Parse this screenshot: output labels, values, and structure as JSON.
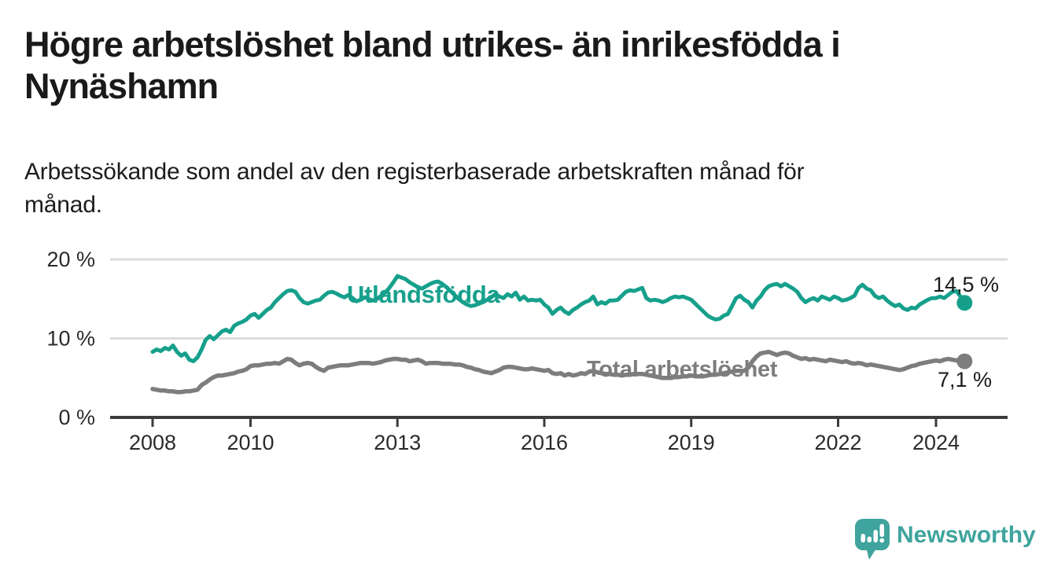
{
  "header": {
    "title": "Högre arbetslöshet bland utrikes- än inrikesfödda i Nynäshamn",
    "title_lines": [
      "Högre arbetslöshet bland utrikes- än inrikesfödda i",
      "Nynäshamn"
    ],
    "subtitle": "Arbetssökande som andel av den registerbaserade arbetskraften månad för månad.",
    "subtitle_lines": [
      "Arbetssökande som andel av den registerbaserade arbetskraften månad för",
      "månad."
    ]
  },
  "chart_data": {
    "type": "line",
    "title": "Högre arbetslöshet bland utrikes- än inrikesfödda i Nynäshamn",
    "x_unit": "month",
    "x_start": "2008-01",
    "x_end": "2024-08",
    "grid": "horizontal-gridlines",
    "legend": "inline-series-labels",
    "ylim": [
      0,
      21
    ],
    "y_ticks": [
      {
        "label": "20 %",
        "value": 20
      },
      {
        "label": "10 %",
        "value": 10
      },
      {
        "label": "0 %",
        "value": 0
      }
    ],
    "x_ticks": [
      {
        "label": "2008",
        "year": 2008
      },
      {
        "label": "2010",
        "year": 2010
      },
      {
        "label": "2013",
        "year": 2013
      },
      {
        "label": "2016",
        "year": 2016
      },
      {
        "label": "2019",
        "year": 2019
      },
      {
        "label": "2022",
        "year": 2022
      },
      {
        "label": "2024",
        "year": 2024
      }
    ],
    "series": [
      {
        "name": "Utlandsfödda",
        "color": "#16a08c",
        "end_label": "14,5 %",
        "end_value": 14.5,
        "values": [
          8.3,
          8.6,
          8.4,
          8.8,
          8.6,
          9.1,
          8.3,
          7.8,
          8.1,
          7.3,
          7.1,
          7.6,
          8.6,
          9.8,
          10.3,
          9.9,
          10.4,
          10.9,
          11.1,
          10.8,
          11.6,
          11.9,
          12.1,
          12.4,
          12.9,
          13.1,
          12.6,
          13.1,
          13.6,
          13.9,
          14.6,
          15.1,
          15.6,
          16.0,
          16.1,
          15.9,
          15.1,
          14.6,
          14.4,
          14.6,
          14.8,
          14.9,
          15.4,
          15.8,
          15.9,
          15.7,
          15.4,
          15.2,
          15.5,
          15.1,
          14.7,
          14.9,
          15.2,
          15.0,
          14.8,
          15.0,
          15.4,
          15.8,
          16.4,
          17.1,
          17.9,
          17.7,
          17.5,
          17.1,
          16.8,
          16.5,
          16.3,
          16.6,
          16.9,
          17.1,
          17.2,
          16.9,
          16.5,
          16.0,
          15.5,
          15.0,
          14.6,
          14.3,
          14.1,
          14.2,
          14.4,
          14.6,
          14.9,
          15.2,
          15.6,
          15.3,
          15.1,
          15.6,
          15.3,
          15.8,
          14.9,
          15.3,
          14.8,
          14.9,
          14.8,
          14.9,
          14.3,
          13.9,
          13.1,
          13.6,
          13.9,
          13.4,
          13.1,
          13.6,
          13.9,
          14.3,
          14.6,
          14.8,
          15.3,
          14.3,
          14.6,
          14.4,
          14.8,
          14.8,
          14.9,
          15.4,
          15.9,
          16.1,
          16.0,
          16.2,
          16.4,
          15.1,
          14.8,
          14.9,
          14.8,
          14.6,
          14.8,
          15.1,
          15.3,
          15.2,
          15.3,
          15.1,
          14.9,
          14.4,
          13.9,
          13.4,
          12.9,
          12.6,
          12.4,
          12.5,
          12.9,
          13.1,
          14.1,
          15.1,
          15.4,
          14.9,
          14.6,
          13.9,
          14.8,
          15.3,
          16.1,
          16.6,
          16.8,
          16.9,
          16.6,
          16.9,
          16.6,
          16.3,
          15.9,
          15.1,
          14.6,
          14.9,
          15.1,
          14.8,
          15.3,
          15.1,
          14.9,
          15.3,
          15.1,
          14.8,
          14.9,
          15.1,
          15.4,
          16.4,
          16.8,
          16.3,
          16.1,
          15.4,
          15.1,
          15.3,
          14.8,
          14.4,
          14.1,
          14.3,
          13.8,
          13.6,
          13.9,
          13.8,
          14.3,
          14.6,
          14.9,
          15.1,
          15.1,
          15.3,
          15.1,
          15.5,
          15.9,
          16.0,
          15.3,
          14.5
        ]
      },
      {
        "name": "Total arbetslöshet",
        "color": "#7d7d7d",
        "end_label": "7,1 %",
        "end_value": 7.1,
        "values": [
          3.6,
          3.5,
          3.4,
          3.4,
          3.3,
          3.3,
          3.2,
          3.2,
          3.3,
          3.3,
          3.4,
          3.5,
          4.1,
          4.4,
          4.8,
          5.1,
          5.3,
          5.3,
          5.4,
          5.5,
          5.6,
          5.8,
          5.9,
          6.1,
          6.5,
          6.6,
          6.6,
          6.7,
          6.8,
          6.8,
          6.9,
          6.8,
          7.1,
          7.4,
          7.3,
          6.9,
          6.6,
          6.8,
          6.9,
          6.8,
          6.4,
          6.1,
          5.9,
          6.3,
          6.4,
          6.5,
          6.6,
          6.6,
          6.6,
          6.7,
          6.8,
          6.9,
          6.9,
          6.9,
          6.8,
          6.9,
          7.0,
          7.2,
          7.3,
          7.4,
          7.4,
          7.3,
          7.3,
          7.1,
          7.2,
          7.3,
          7.1,
          6.8,
          6.9,
          6.9,
          6.9,
          6.8,
          6.8,
          6.8,
          6.7,
          6.7,
          6.6,
          6.4,
          6.3,
          6.1,
          6.0,
          5.8,
          5.7,
          5.6,
          5.8,
          6.0,
          6.3,
          6.4,
          6.4,
          6.3,
          6.2,
          6.1,
          6.1,
          6.2,
          6.1,
          6.0,
          5.9,
          6.0,
          5.6,
          5.5,
          5.6,
          5.3,
          5.5,
          5.3,
          5.4,
          5.6,
          5.5,
          5.8,
          5.9,
          5.7,
          5.6,
          5.5,
          5.5,
          5.4,
          5.4,
          5.3,
          5.4,
          5.4,
          5.5,
          5.5,
          5.5,
          5.4,
          5.3,
          5.2,
          5.1,
          5.0,
          5.0,
          5.0,
          5.1,
          5.1,
          5.2,
          5.2,
          5.3,
          5.2,
          5.2,
          5.2,
          5.3,
          5.4,
          5.4,
          5.5,
          5.6,
          5.7,
          5.8,
          5.9,
          5.9,
          5.9,
          6.3,
          7.1,
          7.7,
          8.1,
          8.2,
          8.3,
          8.1,
          7.9,
          8.1,
          8.2,
          8.1,
          7.8,
          7.6,
          7.4,
          7.5,
          7.3,
          7.4,
          7.3,
          7.2,
          7.1,
          7.3,
          7.2,
          7.1,
          7.0,
          7.1,
          6.9,
          6.8,
          6.9,
          6.8,
          6.6,
          6.7,
          6.6,
          6.5,
          6.4,
          6.3,
          6.2,
          6.1,
          6.0,
          6.1,
          6.3,
          6.5,
          6.6,
          6.8,
          6.9,
          7.0,
          7.1,
          7.2,
          7.1,
          7.3,
          7.4,
          7.3,
          7.2,
          7.3,
          7.1
        ]
      }
    ]
  },
  "branding": {
    "logo_text": "Newsworthy",
    "logo_color": "#3fa49d",
    "logo_icon": "speech-bubble-bar-chart-icon"
  }
}
